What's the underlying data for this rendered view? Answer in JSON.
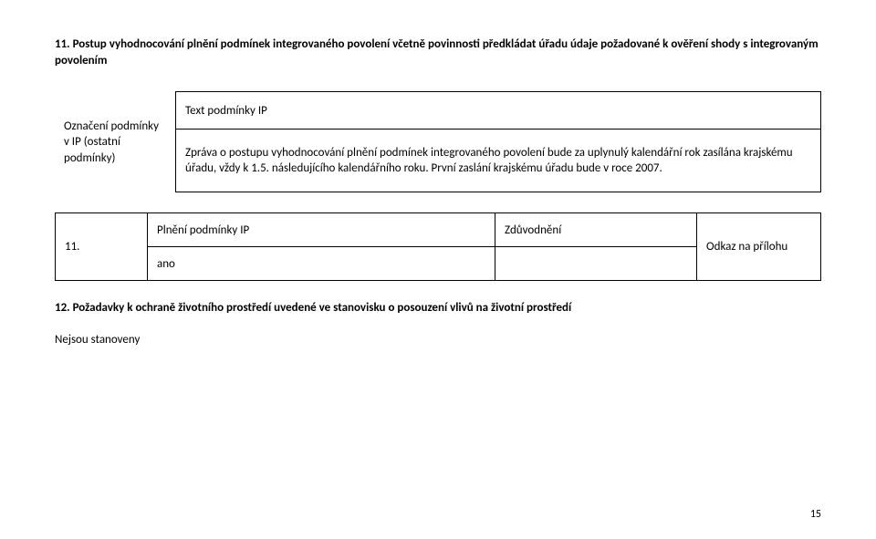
{
  "heading": "11. Postup vyhodnocování plnění podmínek integrovaného povolení včetně povinnosti předkládat úřadu údaje požadované k ověření shody s integrovaným povolením",
  "table1": {
    "rowLabel": "Označení podmínky v IP (ostatní podmínky)",
    "row1": "Text podmínky IP",
    "row2": "Zpráva o postupu vyhodnocování plnění podmínek integrovaného povolení bude za uplynulý kalendářní rok zasílána krajskému úřadu, vždy k 1.5. následujícího kalendářního roku. První zaslání krajskému úřadu bude v roce 2007."
  },
  "table2": {
    "r1c1": "11.",
    "r1c2": "Plnění podmínky IP",
    "r1c3": "Zdůvodnění",
    "r1c4": "Odkaz na přílohu",
    "r2c2": "ano"
  },
  "subheading": "12. Požadavky k ochraně životního prostředí uvedené ve stanovisku o posouzení vlivů na životní prostředí",
  "plain": "Nejsou stanoveny",
  "pageNum": "15"
}
